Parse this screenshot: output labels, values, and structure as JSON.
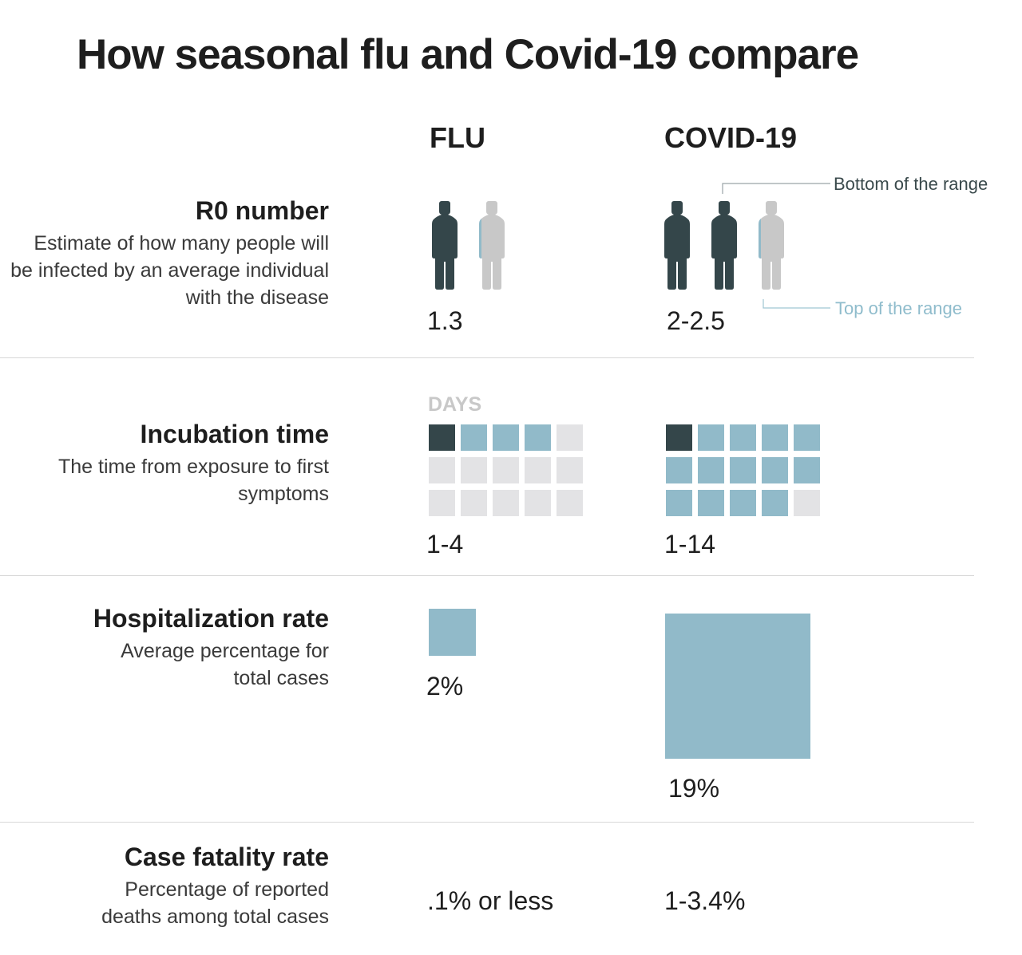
{
  "title": "How seasonal flu and Covid-19 compare",
  "columns": {
    "flu": "FLU",
    "covid": "COVID-19"
  },
  "colors": {
    "dark": "#34464a",
    "light": "#91bac9",
    "empty": "#e3e3e5",
    "person_gray": "#c8c8c8",
    "label_bottom": "#3a4a4c",
    "label_top": "#8fbccc"
  },
  "rows": {
    "r0": {
      "title": "R0 number",
      "desc": "Estimate of how many people will be infected by an average individual with the disease"
    },
    "incubation": {
      "title": "Incubation time",
      "desc": "The time from exposure to first symptoms",
      "unit_label": "DAYS"
    },
    "hospitalization": {
      "title": "Hospitalization rate",
      "desc": "Average percentage for total cases"
    },
    "fatality": {
      "title": "Case fatality rate",
      "desc": "Percentage of reported deaths among total cases"
    }
  },
  "annotations": {
    "bottom": "Bottom of the range",
    "top": "Top of the range"
  },
  "chart_data": {
    "type": "table",
    "title": "How seasonal flu and Covid-19 compare",
    "columns": [
      "FLU",
      "COVID-19"
    ],
    "r0": {
      "flu": {
        "label": "1.3",
        "low": 1.3,
        "high": 1.3,
        "icon": "person-icon"
      },
      "covid": {
        "label": "2-2.5",
        "low": 2,
        "high": 2.5,
        "icon": "person-icon"
      }
    },
    "incubation_days": {
      "grid_cells": 15,
      "flu": {
        "label": "1-4",
        "min": 1,
        "max": 4
      },
      "covid": {
        "label": "1-14",
        "min": 1,
        "max": 14
      }
    },
    "hospitalization_rate_pct": {
      "flu": {
        "label": "2%",
        "value": 2
      },
      "covid": {
        "label": "19%",
        "value": 19
      }
    },
    "case_fatality_rate": {
      "flu": {
        "label": ".1% or less"
      },
      "covid": {
        "label": "1-3.4%"
      }
    }
  }
}
